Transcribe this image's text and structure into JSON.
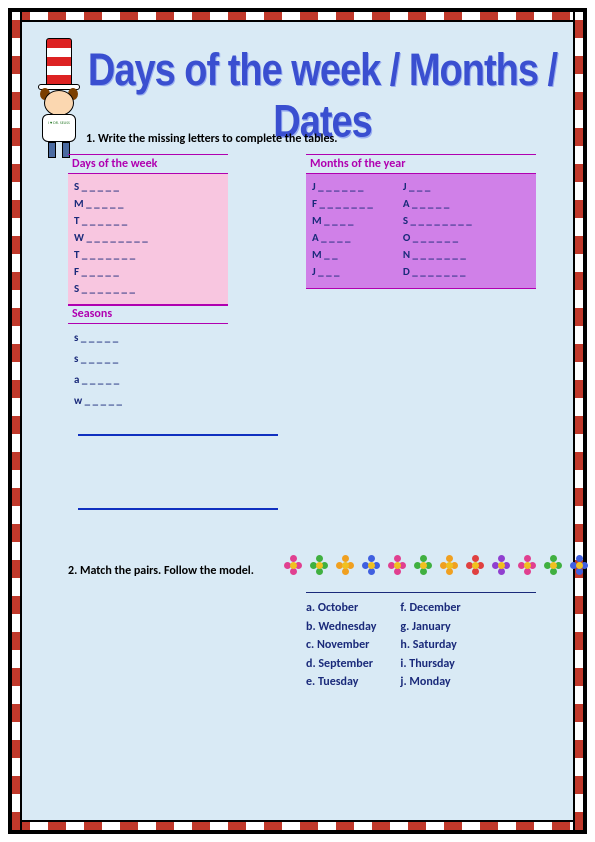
{
  "title": "Days of the week / Months / Dates",
  "cartoon_shirt": "I ♥\nDR. SEUSS",
  "instruction1": "1. Write the missing letters to complete the tables.",
  "instruction2": "2. Match the pairs. Follow the model.",
  "days": {
    "header": "Days of the week",
    "lines": [
      "S _ _ _ _ _",
      "M _ _ _ _ _",
      "T _ _ _ _ _ _",
      "W _ _ _ _ _ _ _ _",
      "T _ _ _ _ _ _ _",
      "F _ _ _ _ _",
      "S _ _ _ _ _ _ _"
    ]
  },
  "months": {
    "header": "Months of the year",
    "col1": [
      "J _ _ _ _ _ _",
      "F _ _ _ _ _ _ _",
      "M _ _ _ _",
      "A _ _ _ _",
      "M _ _",
      "J _ _ _"
    ],
    "col2": [
      "J _ _ _",
      "A _ _ _ _ _",
      "S _ _ _ _ _ _ _ _",
      "O _ _ _ _ _ _",
      "N _ _ _ _ _ _ _",
      "D _ _ _ _ _ _ _"
    ]
  },
  "seasons": {
    "header": "Seasons",
    "lines": [
      "s _ _ _ _ _",
      "s _ _ _ _ _",
      "a _ _ _ _ _",
      "w _ _ _ _ _"
    ]
  },
  "pairs": {
    "col1": [
      "a. October",
      "b. Wednesday",
      "c. November",
      "d. September",
      "e. Tuesday"
    ],
    "col2": [
      "f. December",
      "g. January",
      "h. Saturday",
      "i. Thursday",
      "j. Monday"
    ]
  },
  "flower_colors": [
    "#e04090",
    "#40b040",
    "#f0a020",
    "#4060e0",
    "#e04090",
    "#40b040",
    "#f0a020",
    "#e04040",
    "#9040d0",
    "#e04090",
    "#40b040",
    "#4060e0"
  ],
  "colors": {
    "page_bg": "#d9eaf5",
    "title_color": "#3a4fd0",
    "magenta": "#b000b0",
    "navy": "#1a2a7a",
    "pink_fill": "#f8c6e0",
    "purple_fill": "#d080e8",
    "blue_rule": "#1030c0"
  }
}
